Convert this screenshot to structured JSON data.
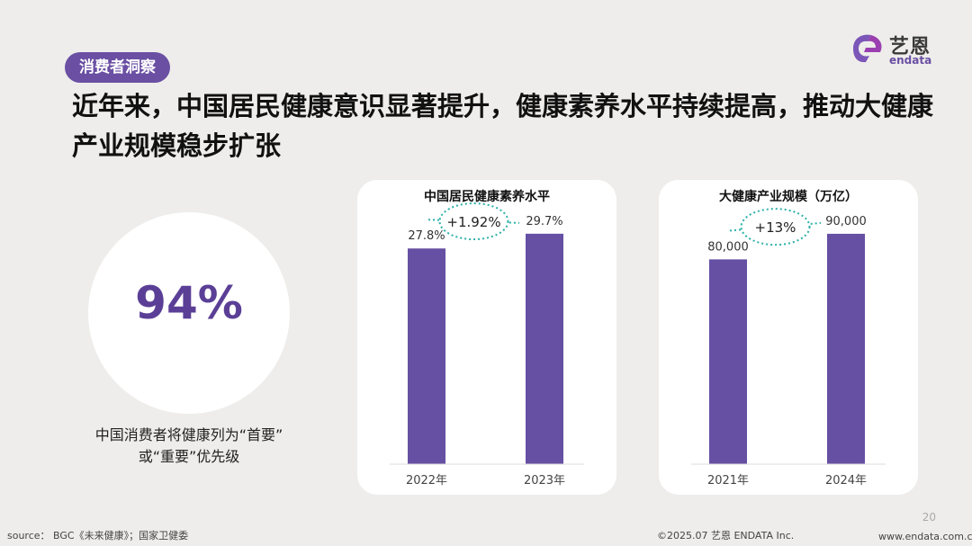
{
  "tag": "消费者洞察",
  "headline": "近年来，中国居民健康意识显著提升，健康素养水平持续提高，推动大健康产业规模稳步扩张",
  "logo": {
    "cn": "艺恩",
    "en": "endata"
  },
  "stat": {
    "value": "94%",
    "caption_line1": "中国消费者将健康列为“首要”",
    "caption_line2": "或“重要”优先级"
  },
  "chart_data": [
    {
      "type": "bar",
      "title": "中国居民健康素养水平",
      "categories": [
        "2022年",
        "2023年"
      ],
      "values": [
        27.8,
        29.7
      ],
      "value_labels": [
        "27.8%",
        "29.7%"
      ],
      "annotation": "+1.92%",
      "ylim": [
        0,
        32
      ],
      "color": "#6550a3"
    },
    {
      "type": "bar",
      "title": "大健康产业规模（万亿）",
      "categories": [
        "2021年",
        "2024年"
      ],
      "values": [
        80000,
        90000
      ],
      "value_labels": [
        "80,000",
        "90,000"
      ],
      "annotation": "+13%",
      "ylim": [
        0,
        97000
      ],
      "color": "#6550a3"
    }
  ],
  "footer": {
    "source": "source： BGC《未来健康》；国家卫健委",
    "copyright": "©2025.07  艺恩 ENDATA Inc.",
    "website": "www.endata.com.cn",
    "page": "20"
  },
  "colors": {
    "accent": "#6a4fa3",
    "bar": "#6550a3",
    "connector": "#2bb0a8"
  }
}
